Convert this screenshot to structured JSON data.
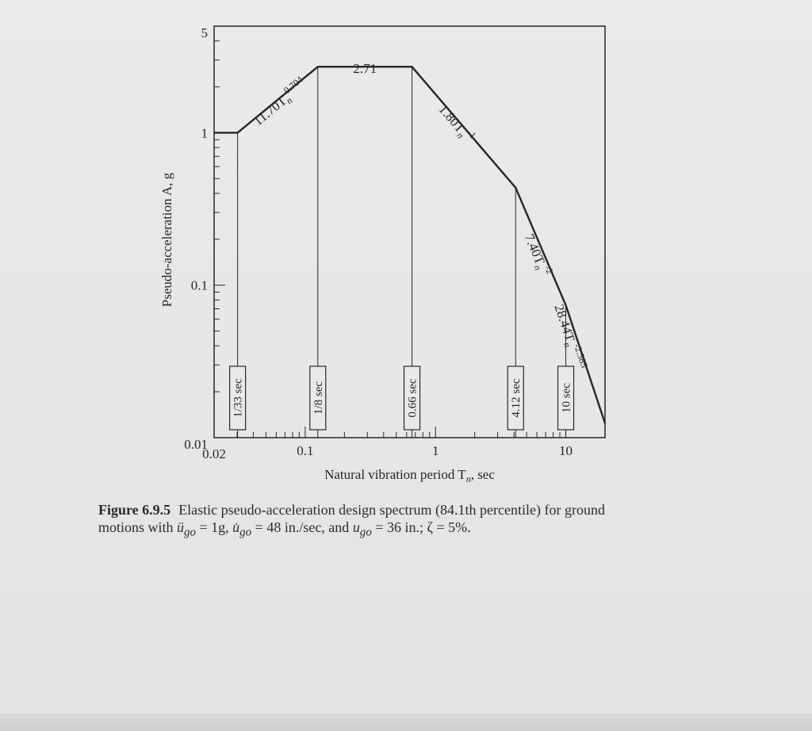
{
  "chart_data": {
    "type": "line",
    "x_scale": "log",
    "y_scale": "log",
    "xlim": [
      0.02,
      20
    ],
    "ylim": [
      0.01,
      5
    ],
    "xlabel": "Natural vibration period T",
    "xlabel_sub": "n",
    "xlabel_suffix": ", sec",
    "ylabel": "Pseudo-acceleration A, g",
    "x_ticks": [
      {
        "value": 0.02,
        "label": "0.02"
      },
      {
        "value": 0.1,
        "label": "0.1"
      },
      {
        "value": 1,
        "label": "1"
      },
      {
        "value": 10,
        "label": "10"
      }
    ],
    "y_ticks": [
      {
        "value": 0.01,
        "label": "0.01"
      },
      {
        "value": 0.1,
        "label": "0.1"
      },
      {
        "value": 1,
        "label": "1"
      },
      {
        "value": 5,
        "label": "5"
      }
    ],
    "series": [
      {
        "points": [
          {
            "x": 0.02,
            "y": 1.0
          },
          {
            "x": 0.0303,
            "y": 1.0
          },
          {
            "x": 0.125,
            "y": 2.71
          },
          {
            "x": 0.66,
            "y": 2.71
          },
          {
            "x": 4.12,
            "y": 0.436
          },
          {
            "x": 10,
            "y": 0.074
          },
          {
            "x": 20,
            "y": 0.0124
          }
        ]
      }
    ],
    "corner_periods": [
      {
        "x": 0.0303,
        "y": 1.0,
        "label": "1/33 sec"
      },
      {
        "x": 0.125,
        "y": 2.71,
        "label": "1/8 sec"
      },
      {
        "x": 0.66,
        "y": 2.71,
        "label": "0.66 sec"
      },
      {
        "x": 4.12,
        "y": 0.436,
        "label": "4.12 sec"
      },
      {
        "x": 10,
        "y": 0.074,
        "label": "10 sec"
      }
    ],
    "segment_labels": [
      {
        "text": "11.70T",
        "sub": "n",
        "sup": "0.704"
      },
      {
        "text": "2.71"
      },
      {
        "text": "1.80T",
        "sub": "n",
        "sup": "-1"
      },
      {
        "text": "7.40T",
        "sub": "n",
        "sup": "-2"
      },
      {
        "text": "28.44T",
        "sub": "n",
        "sup": "-2.585"
      }
    ]
  },
  "caption": {
    "label": "Figure 6.9.5",
    "line1": "Elastic pseudo-acceleration design spectrum (84.1th percentile) for ground",
    "line2_a": "motions with ",
    "line2_ugo1": "ü",
    "line2_b": " = 1g, ",
    "line2_ugo2": "u̇",
    "line2_c": " = 48 in./sec, and ",
    "line2_ugo3": "u",
    "line2_d": " = 36 in.; ζ = 5%.",
    "sub_go": "go"
  },
  "colors": {
    "ink": "#262626",
    "paper": "#e8eae9"
  }
}
